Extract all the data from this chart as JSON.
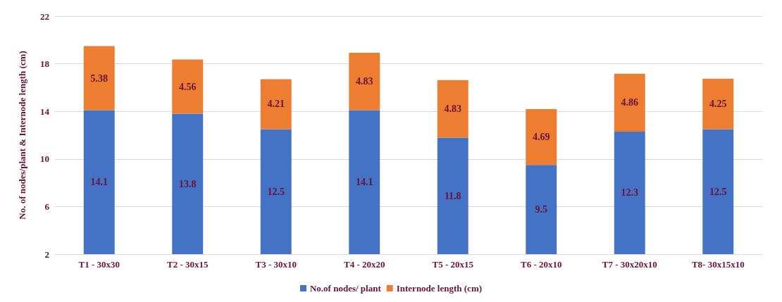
{
  "chart_data": {
    "type": "bar",
    "stacked": true,
    "ylabel": "No. of nodes/plant & Internode length (cm)",
    "categories": [
      "T1 - 30x30",
      "T2 - 30x15",
      "T3 - 30x10",
      "T4 - 20x20",
      "T5 - 20x15",
      "T6 - 20x10",
      "T7 - 30x20x10",
      "T8- 30x15x10"
    ],
    "series": [
      {
        "name": "No.of nodes/ plant",
        "color": "#4472c4",
        "values": [
          14.1,
          13.8,
          12.5,
          14.1,
          11.8,
          9.5,
          12.3,
          12.5
        ]
      },
      {
        "name": "Internode length (cm)",
        "color": "#ed7d31",
        "values": [
          5.38,
          4.56,
          4.21,
          4.83,
          4.83,
          4.69,
          4.86,
          4.25
        ]
      }
    ],
    "ylim": [
      2,
      22
    ],
    "yticks": [
      2,
      6,
      10,
      14,
      18,
      22
    ],
    "grid": "y",
    "legend": "bottom",
    "data_labels": true
  }
}
